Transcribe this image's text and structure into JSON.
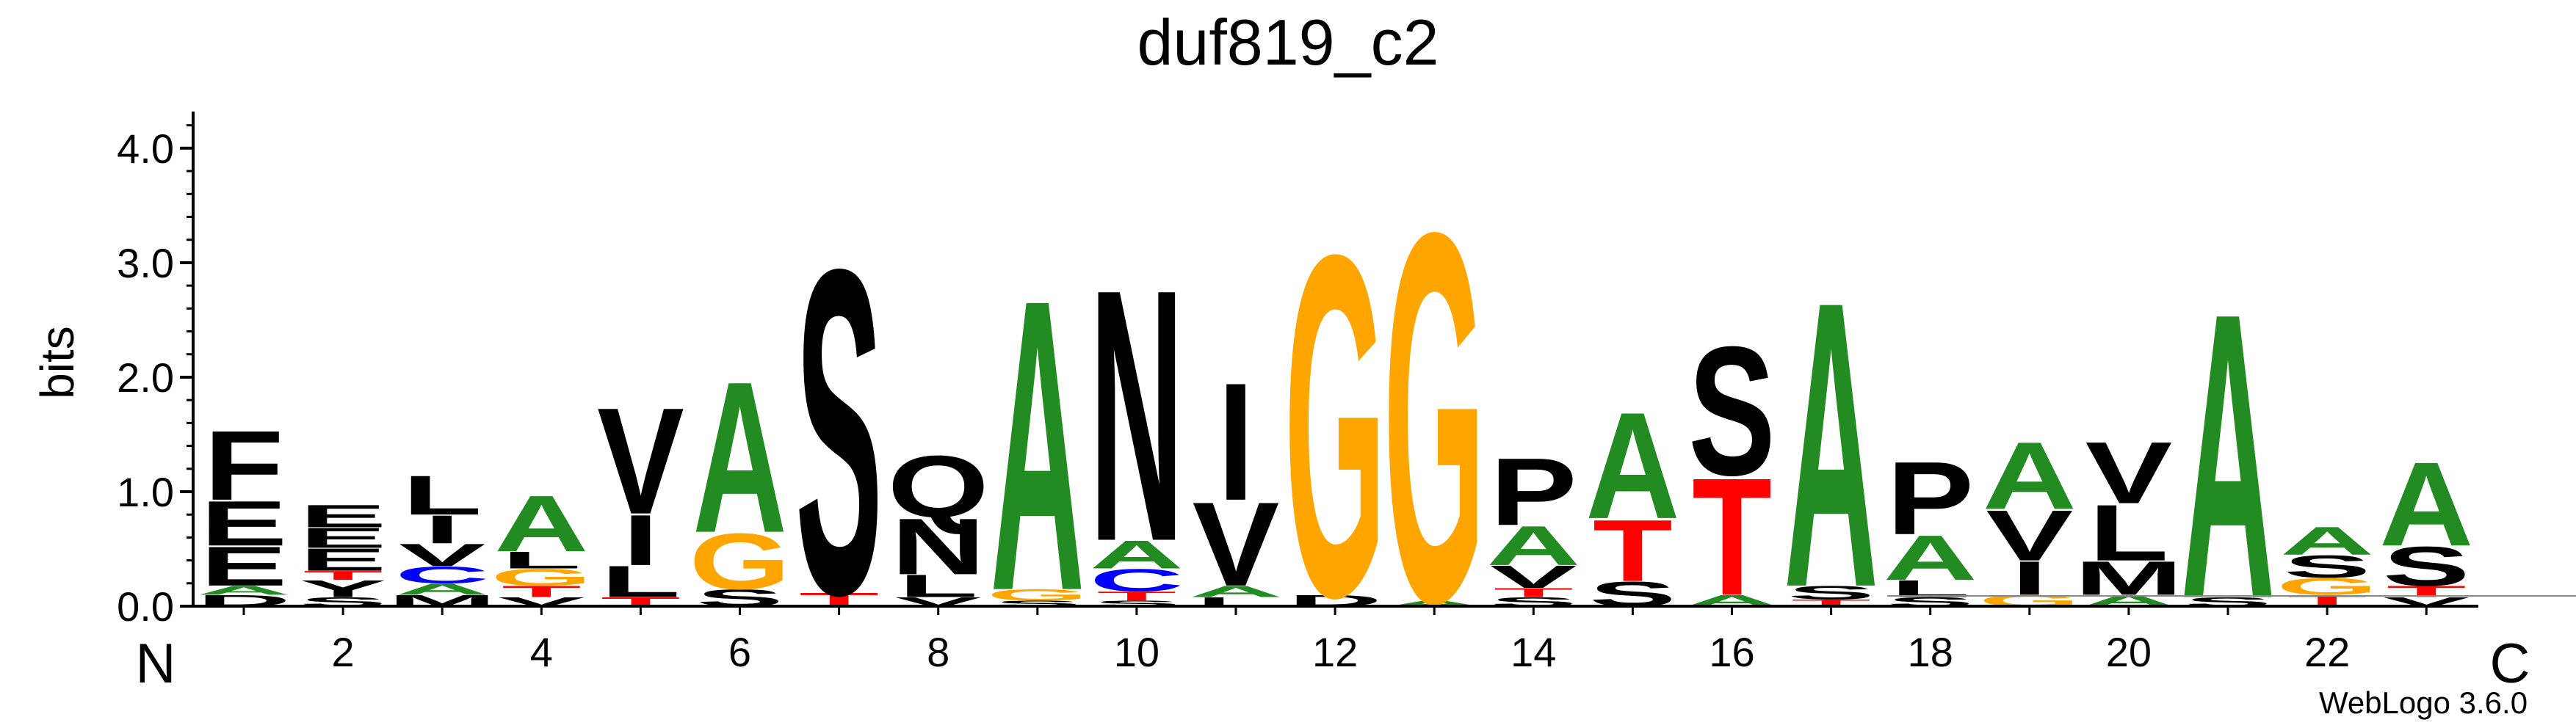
{
  "chart_data": {
    "type": "sequence-logo",
    "title": "duf819_c2",
    "ylabel": "bits",
    "ylim": [
      0,
      4.32
    ],
    "y_ticks": [
      "0.0",
      "1.0",
      "2.0",
      "3.0",
      "4.0"
    ],
    "y_tick_values": [
      0,
      1,
      2,
      3,
      4
    ],
    "x_ticks": [
      "2",
      "4",
      "6",
      "8",
      "10",
      "12",
      "14",
      "16",
      "18",
      "20",
      "22"
    ],
    "x_tick_positions": [
      2,
      4,
      6,
      8,
      10,
      12,
      14,
      16,
      18,
      20,
      22
    ],
    "n_terminus_label": "N",
    "c_terminus_label": "C",
    "credit": "WebLogo 3.6.0",
    "colors": {
      "A": "#228b22",
      "G": "#ffa500",
      "T": "#ff0000",
      "C": "#0000ff",
      "S": "#000000",
      "N": "#000000",
      "Q": "#000000",
      "V": "#000000",
      "I": "#000000",
      "L": "#000000",
      "M": "#000000",
      "F": "#000000",
      "P": "#000000",
      "E": "#000000",
      "D": "#000000",
      "Y": "#000000",
      "K": "#000000"
    },
    "positions": [
      {
        "pos": 1,
        "stack": [
          [
            "D",
            0.1
          ],
          [
            "A",
            0.08
          ],
          [
            "E",
            0.35
          ],
          [
            "E",
            0.4
          ],
          [
            "F",
            0.62
          ]
        ]
      },
      {
        "pos": 2,
        "stack": [
          [
            "S",
            0.08
          ],
          [
            "Y",
            0.15
          ],
          [
            "T",
            0.08
          ],
          [
            "E",
            0.2
          ],
          [
            "E",
            0.18
          ],
          [
            "E",
            0.2
          ]
        ]
      },
      {
        "pos": 3,
        "stack": [
          [
            "M",
            0.1
          ],
          [
            "A",
            0.1
          ],
          [
            "C",
            0.15
          ],
          [
            "V",
            0.2
          ],
          [
            "I",
            0.25
          ],
          [
            "L",
            0.35
          ]
        ]
      },
      {
        "pos": 4,
        "stack": [
          [
            "V",
            0.08
          ],
          [
            "T",
            0.1
          ],
          [
            "G",
            0.15
          ],
          [
            "L",
            0.15
          ],
          [
            "A",
            0.5
          ]
        ]
      },
      {
        "pos": 5,
        "stack": [
          [
            "T",
            0.08
          ],
          [
            "L",
            0.28
          ],
          [
            "I",
            0.45
          ],
          [
            "V",
            0.95
          ]
        ]
      },
      {
        "pos": 6,
        "stack": [
          [
            "S",
            0.15
          ],
          [
            "G",
            0.5
          ],
          [
            "A",
            1.35
          ]
        ]
      },
      {
        "pos": 7,
        "stack": [
          [
            "T",
            0.12
          ],
          [
            "S",
            2.9
          ]
        ]
      },
      {
        "pos": 8,
        "stack": [
          [
            "V",
            0.08
          ],
          [
            "L",
            0.2
          ],
          [
            "N",
            0.5
          ],
          [
            "Q",
            0.55
          ]
        ]
      },
      {
        "pos": 9,
        "stack": [
          [
            "S",
            0.05
          ],
          [
            "G",
            0.1
          ],
          [
            "A",
            2.6
          ]
        ]
      },
      {
        "pos": 10,
        "stack": [
          [
            "S",
            0.05
          ],
          [
            "T",
            0.08
          ],
          [
            "C",
            0.2
          ],
          [
            "A",
            0.25
          ],
          [
            "N",
            2.25
          ]
        ]
      },
      {
        "pos": 11,
        "stack": [
          [
            "L",
            0.08
          ],
          [
            "A",
            0.1
          ],
          [
            "V",
            0.75
          ],
          [
            "I",
            1.05
          ]
        ]
      },
      {
        "pos": 12,
        "stack": [
          [
            "D",
            0.1
          ],
          [
            "G",
            3.05
          ]
        ]
      },
      {
        "pos": 13,
        "stack": [
          [
            "A",
            0.05
          ],
          [
            "G",
            3.3
          ]
        ]
      },
      {
        "pos": 14,
        "stack": [
          [
            "S",
            0.08
          ],
          [
            "T",
            0.08
          ],
          [
            "V",
            0.2
          ],
          [
            "A",
            0.35
          ],
          [
            "P",
            0.6
          ]
        ]
      },
      {
        "pos": 15,
        "stack": [
          [
            "S",
            0.22
          ],
          [
            "T",
            0.55
          ],
          [
            "A",
            0.95
          ]
        ]
      },
      {
        "pos": 16,
        "stack": [
          [
            "A",
            0.1
          ],
          [
            "T",
            1.05
          ],
          [
            "S",
            1.15
          ]
        ]
      },
      {
        "pos": 17,
        "stack": [
          [
            "T",
            0.06
          ],
          [
            "S",
            0.12
          ],
          [
            "A",
            2.55
          ]
        ]
      },
      {
        "pos": 18,
        "stack": [
          [
            "S",
            0.08
          ],
          [
            "L",
            0.15
          ],
          [
            "A",
            0.4
          ],
          [
            "P",
            0.65
          ]
        ]
      },
      {
        "pos": 19,
        "stack": [
          [
            "G",
            0.1
          ],
          [
            "I",
            0.3
          ],
          [
            "V",
            0.45
          ],
          [
            "A",
            0.6
          ]
        ]
      },
      {
        "pos": 20,
        "stack": [
          [
            "A",
            0.1
          ],
          [
            "M",
            0.3
          ],
          [
            "L",
            0.5
          ],
          [
            "V",
            0.55
          ]
        ]
      },
      {
        "pos": 21,
        "stack": [
          [
            "S",
            0.08
          ],
          [
            "A",
            2.55
          ]
        ]
      },
      {
        "pos": 22,
        "stack": [
          [
            "T",
            0.1
          ],
          [
            "G",
            0.15
          ],
          [
            "S",
            0.2
          ],
          [
            "A",
            0.25
          ]
        ]
      },
      {
        "pos": 23,
        "stack": [
          [
            "V",
            0.08
          ],
          [
            "T",
            0.1
          ],
          [
            "S",
            0.35
          ],
          [
            "A",
            0.75
          ]
        ]
      }
    ]
  }
}
